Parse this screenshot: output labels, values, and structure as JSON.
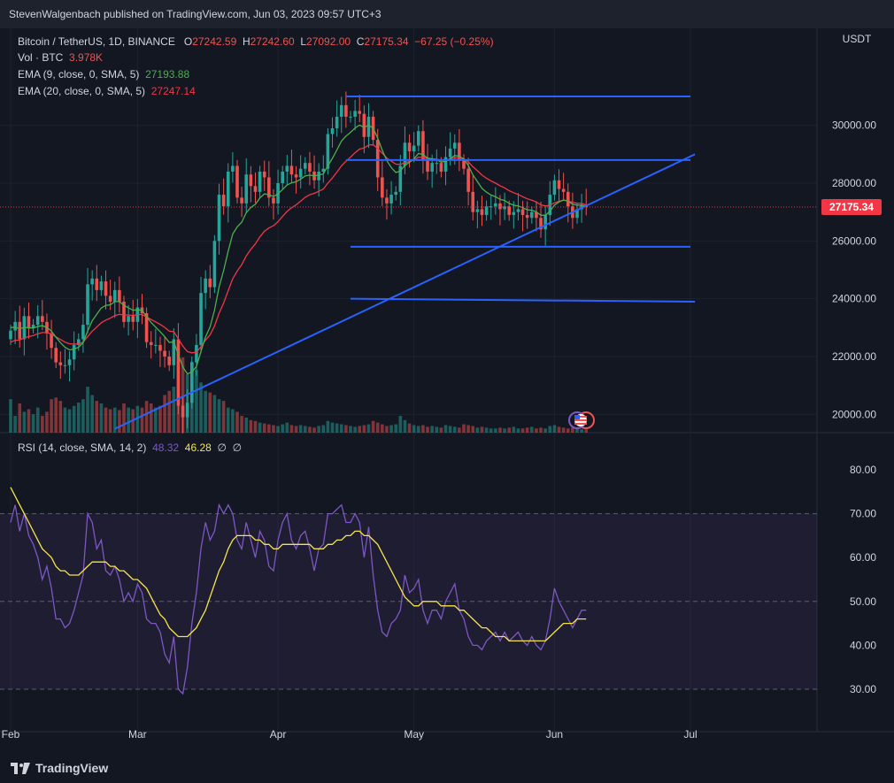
{
  "header": {
    "publisher": "StevenWalgenbach published on TradingView.com, Jun 03, 2023 09:57 UTC+3"
  },
  "legend": {
    "symbol": "Bitcoin / TetherUS, 1D, BINANCE",
    "o_label": "O",
    "o": "27242.59",
    "h_label": "H",
    "h": "27242.60",
    "l_label": "L",
    "l": "27092.00",
    "c_label": "C",
    "c": "27175.34",
    "change": "−67.25 (−0.25%)",
    "vol_label": "Vol · BTC",
    "vol": "3.978K",
    "ema9_label": "EMA (9, close, 0, SMA, 5)",
    "ema9": "27193.88",
    "ema20_label": "EMA (20, close, 0, SMA, 5)",
    "ema20": "27247.14",
    "rsi_label": "RSI (14, close, SMA, 14, 2)",
    "rsi": "48.32",
    "rsi_ma": "46.28",
    "empty1": "∅",
    "empty2": "∅"
  },
  "colors": {
    "up": "#26a69a",
    "down": "#ef5350",
    "ema9": "#4caf50",
    "ema20": "#f23645",
    "rsi": "#7e57c2",
    "rsi_ma": "#f5e44b",
    "drawing": "#2962ff",
    "price_tag": "#f23645"
  },
  "chart_data": {
    "type": "candlestick",
    "currency": "USDT",
    "price_axis": {
      "min": 18500,
      "max": 31500,
      "ticks": [
        "30000.00",
        "28000.00",
        "26000.00",
        "24000.00",
        "22000.00",
        "20000.00"
      ],
      "tick_values": [
        30000,
        28000,
        26000,
        24000,
        22000,
        20000
      ]
    },
    "last_price": "27175.34",
    "last_price_value": 27175.34,
    "time_axis": {
      "labels": [
        "Feb",
        "Mar",
        "Apr",
        "May",
        "Jun",
        "Jul"
      ],
      "label_index": [
        0,
        28,
        59,
        89,
        120,
        150
      ]
    },
    "close": [
      22900,
      23200,
      22600,
      23400,
      23000,
      23100,
      23400,
      23200,
      22800,
      22300,
      21800,
      21700,
      21700,
      21900,
      22400,
      22600,
      23100,
      24500,
      24700,
      24300,
      24600,
      24100,
      23900,
      24300,
      23900,
      23200,
      23400,
      23200,
      23700,
      23500,
      22500,
      22400,
      22400,
      22200,
      22000,
      21700,
      22600,
      20300,
      19900,
      20400,
      21800,
      22400,
      24200,
      24700,
      24400,
      26000,
      27600,
      27200,
      28400,
      28600,
      27500,
      27300,
      28300,
      27900,
      27700,
      28400,
      28200,
      27500,
      27300,
      28000,
      28400,
      28600,
      28300,
      28200,
      28500,
      28700,
      28400,
      28100,
      28400,
      28500,
      29700,
      29900,
      30300,
      30700,
      30300,
      30300,
      30500,
      30400,
      29600,
      30300,
      29500,
      28200,
      27500,
      27300,
      27600,
      27700,
      28600,
      29400,
      29100,
      29300,
      29800,
      28800,
      28400,
      28700,
      28700,
      28400,
      28900,
      29200,
      29400,
      28800,
      28500,
      27700,
      27000,
      27100,
      26900,
      27200,
      27200,
      27300,
      27100,
      27200,
      26900,
      27000,
      27100,
      26900,
      26800,
      27000,
      26800,
      26400,
      26900,
      27600,
      28100,
      27800,
      27700,
      27200,
      26800,
      27100,
      27250,
      27175
    ],
    "volume": [
      40,
      20,
      35,
      25,
      28,
      22,
      30,
      20,
      25,
      40,
      42,
      38,
      30,
      28,
      32,
      36,
      40,
      55,
      45,
      38,
      35,
      30,
      28,
      30,
      27,
      35,
      30,
      28,
      32,
      30,
      38,
      35,
      30,
      32,
      45,
      50,
      55,
      80,
      90,
      70,
      85,
      75,
      60,
      50,
      48,
      45,
      40,
      38,
      30,
      28,
      25,
      20,
      18,
      15,
      14,
      12,
      11,
      10,
      9,
      8,
      10,
      12,
      9,
      8,
      9,
      8,
      7,
      6,
      8,
      9,
      14,
      12,
      11,
      10,
      9,
      8,
      7,
      8,
      9,
      10,
      14,
      12,
      10,
      8,
      9,
      10,
      20,
      15,
      11,
      9,
      8,
      9,
      7,
      8,
      7,
      6,
      9,
      8,
      7,
      6,
      10,
      9,
      8,
      6,
      7,
      6,
      5,
      5,
      6,
      5,
      6,
      7,
      5,
      5,
      6,
      7,
      5,
      6,
      5,
      8,
      9,
      7,
      6,
      5,
      6,
      5,
      4,
      4
    ],
    "ema9": [
      23000,
      23020,
      22960,
      23010,
      22990,
      22990,
      23040,
      23070,
      23010,
      22880,
      22670,
      22480,
      22320,
      22230,
      22260,
      22320,
      22480,
      22880,
      23240,
      23460,
      23680,
      23770,
      23790,
      23900,
      23900,
      23770,
      23690,
      23600,
      23620,
      23600,
      23380,
      23180,
      23020,
      22860,
      22690,
      22490,
      22510,
      22070,
      21640,
      21400,
      21470,
      21650,
      22170,
      22680,
      23020,
      23610,
      24410,
      24970,
      25650,
      26240,
      26490,
      26650,
      26980,
      27160,
      27270,
      27490,
      27630,
      27600,
      27540,
      27630,
      27780,
      27940,
      28010,
      28050,
      28140,
      28250,
      28280,
      28250,
      28280,
      28320,
      28600,
      28860,
      29150,
      29460,
      29630,
      29760,
      29910,
      30010,
      29930,
      30010,
      29900,
      29560,
      29150,
      28780,
      28540,
      28370,
      28420,
      28620,
      28720,
      28840,
      29030,
      28990,
      28870,
      28840,
      28810,
      28730,
      28760,
      28850,
      28960,
      28930,
      28840,
      28610,
      28290,
      28050,
      27820,
      27690,
      27590,
      27530,
      27440,
      27400,
      27300,
      27240,
      27210,
      27150,
      27080,
      27060,
      27010,
      26890,
      26890,
      27030,
      27240,
      27350,
      27420,
      27380,
      27270,
      27240,
      27242,
      27194
    ],
    "ema20": [
      22500,
      22560,
      22570,
      22650,
      22690,
      22730,
      22790,
      22830,
      22830,
      22780,
      22680,
      22590,
      22500,
      22440,
      22430,
      22440,
      22500,
      22690,
      22880,
      23020,
      23170,
      23260,
      23330,
      23420,
      23460,
      23440,
      23440,
      23420,
      23450,
      23460,
      23370,
      23280,
      23200,
      23110,
      23010,
      22880,
      22860,
      22620,
      22360,
      22170,
      22130,
      22150,
      22340,
      22570,
      22750,
      23060,
      23500,
      23850,
      24280,
      24690,
      24960,
      25180,
      25480,
      25710,
      25900,
      26140,
      26340,
      26450,
      26530,
      26670,
      26850,
      27020,
      27150,
      27250,
      27380,
      27510,
      27600,
      27650,
      27720,
      27800,
      28000,
      28180,
      28380,
      28600,
      28760,
      28900,
      29050,
      29180,
      29220,
      29320,
      29330,
      29200,
      29040,
      28870,
      28760,
      28660,
      28650,
      28710,
      28750,
      28800,
      28900,
      28890,
      28850,
      28840,
      28830,
      28790,
      28800,
      28830,
      28880,
      28870,
      28840,
      28740,
      28570,
      28430,
      28280,
      28170,
      28080,
      28000,
      27910,
      27840,
      27740,
      27670,
      27610,
      27530,
      27460,
      27410,
      27350,
      27250,
      27210,
      27240,
      27320,
      27370,
      27410,
      27390,
      27330,
      27310,
      27300,
      27247
    ],
    "rsi_axis": {
      "min": 27,
      "max": 85,
      "ticks": [
        "80.00",
        "70.00",
        "60.00",
        "50.00",
        "40.00",
        "30.00"
      ],
      "tick_values": [
        80,
        70,
        60,
        50,
        40,
        30
      ],
      "band": [
        30,
        70
      ]
    },
    "rsi": [
      68,
      72,
      66,
      70,
      65,
      63,
      60,
      55,
      58,
      53,
      46,
      46,
      44,
      45,
      48,
      52,
      56,
      70,
      68,
      62,
      64,
      57,
      56,
      58,
      55,
      50,
      52,
      50,
      54,
      52,
      46,
      45,
      45,
      43,
      38,
      36,
      42,
      30,
      29,
      35,
      45,
      52,
      62,
      68,
      64,
      66,
      72,
      70,
      72,
      70,
      64,
      62,
      68,
      64,
      60,
      66,
      64,
      58,
      57,
      64,
      68,
      70,
      64,
      62,
      65,
      66,
      62,
      57,
      62,
      63,
      70,
      70,
      71,
      72,
      68,
      68,
      70,
      68,
      60,
      67,
      56,
      48,
      43,
      42,
      45,
      46,
      48,
      56,
      52,
      53,
      55,
      48,
      45,
      48,
      48,
      46,
      50,
      52,
      54,
      48,
      46,
      42,
      40,
      40,
      39,
      41,
      42,
      43,
      41,
      43,
      41,
      42,
      43,
      41,
      40,
      42,
      40,
      39,
      41,
      46,
      53,
      50,
      48,
      46,
      44,
      46,
      48,
      48
    ],
    "rsi_ma": [
      76,
      74,
      72,
      70,
      68,
      66,
      64,
      62,
      61,
      60,
      58,
      57,
      57,
      56,
      56,
      56,
      57,
      58,
      59,
      59,
      59,
      59,
      58,
      58,
      57,
      57,
      56,
      55,
      55,
      54,
      53,
      51,
      49,
      47,
      46,
      44,
      43,
      42,
      42,
      42,
      43,
      44,
      46,
      48,
      51,
      54,
      57,
      59,
      62,
      64,
      65,
      65,
      65,
      65,
      64,
      64,
      63,
      63,
      62,
      62,
      63,
      63,
      63,
      63,
      63,
      63,
      63,
      62,
      62,
      62,
      63,
      63,
      64,
      64,
      65,
      65,
      66,
      66,
      65,
      65,
      64,
      63,
      61,
      59,
      57,
      55,
      53,
      51,
      50,
      49,
      49,
      50,
      50,
      50,
      50,
      49,
      49,
      49,
      49,
      48,
      48,
      47,
      46,
      45,
      44,
      44,
      43,
      42,
      42,
      42,
      41,
      41,
      41,
      41,
      41,
      41,
      41,
      41,
      41,
      42,
      43,
      44,
      45,
      45,
      45,
      46,
      46,
      46
    ],
    "annotations": [
      {
        "type": "trendline",
        "from": [
          23,
          19500
        ],
        "to": [
          151,
          29000
        ]
      },
      {
        "type": "hline",
        "x": [
          74,
          150
        ],
        "y": 31000
      },
      {
        "type": "hline",
        "x": [
          74,
          150
        ],
        "y": 28800
      },
      {
        "type": "hline",
        "x": [
          75,
          150
        ],
        "y": 25800
      },
      {
        "type": "hline",
        "x": [
          75,
          151
        ],
        "y": 24000,
        "y_end": 23900
      }
    ]
  }
}
